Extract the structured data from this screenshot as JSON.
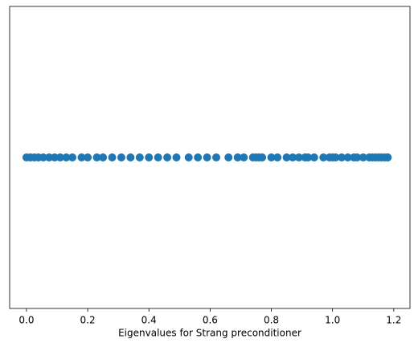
{
  "chart_data": {
    "type": "scatter",
    "xlabel": "Eigenvalues for Strang preconditioner",
    "color": "#1f77b4",
    "x": [
      0.0,
      0.013,
      0.026,
      0.039,
      0.055,
      0.074,
      0.092,
      0.11,
      0.13,
      0.15,
      0.18,
      0.2,
      0.23,
      0.25,
      0.28,
      0.31,
      0.34,
      0.37,
      0.4,
      0.43,
      0.46,
      0.49,
      0.53,
      0.56,
      0.59,
      0.62,
      0.66,
      0.69,
      0.71,
      0.74,
      0.75,
      0.76,
      0.77,
      0.8,
      0.82,
      0.85,
      0.87,
      0.89,
      0.91,
      0.92,
      0.94,
      0.97,
      0.99,
      1.0,
      1.01,
      1.03,
      1.05,
      1.07,
      1.08,
      1.1,
      1.12,
      1.13,
      1.14,
      1.15,
      1.16,
      1.17,
      1.18,
      1.18
    ],
    "y": [
      0,
      0,
      0,
      0,
      0,
      0,
      0,
      0,
      0,
      0,
      0,
      0,
      0,
      0,
      0,
      0,
      0,
      0,
      0,
      0,
      0,
      0,
      0,
      0,
      0,
      0,
      0,
      0,
      0,
      0,
      0,
      0,
      0,
      0,
      0,
      0,
      0,
      0,
      0,
      0,
      0,
      0,
      0,
      0,
      0,
      0,
      0,
      0,
      0,
      0,
      0,
      0,
      0,
      0,
      0,
      0,
      0,
      0
    ],
    "xlim": [
      -0.055,
      1.253
    ],
    "ylim": [
      -0.06,
      0.06
    ],
    "xticks": [
      {
        "value": 0,
        "label": "0.0"
      },
      {
        "value": 0.2,
        "label": "0.2"
      },
      {
        "value": 0.4,
        "label": "0.4"
      },
      {
        "value": 0.6,
        "label": "0.6"
      },
      {
        "value": 0.8,
        "label": "0.8"
      },
      {
        "value": 1.0,
        "label": "1.0"
      },
      {
        "value": 1.2,
        "label": "1.2"
      }
    ]
  }
}
